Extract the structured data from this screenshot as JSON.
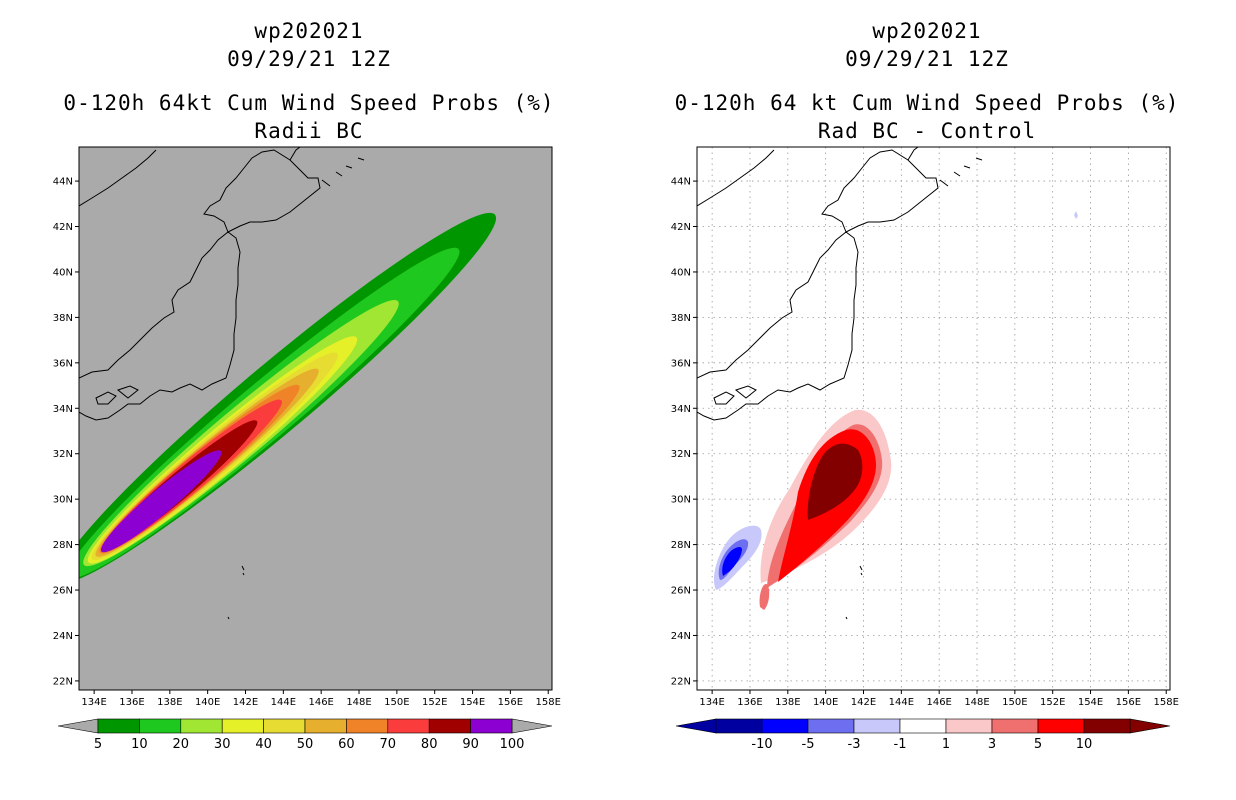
{
  "left": {
    "title": {
      "line1": "wp202021",
      "line2": "09/29/21 12Z",
      "line3": "0-120h 64kt Cum Wind Speed Probs (%)",
      "line4": "Radii BC"
    },
    "background": "#aaaaaa",
    "chart_data": {
      "type": "heatmap",
      "title": "0-120h 64kt Cum Wind Speed Probs (%) - Radii BC",
      "x_ticks": [
        "134E",
        "136E",
        "138E",
        "140E",
        "142E",
        "144E",
        "146E",
        "148E",
        "150E",
        "152E",
        "154E",
        "156E",
        "158E"
      ],
      "y_ticks": [
        "22N",
        "24N",
        "26N",
        "28N",
        "30N",
        "32N",
        "34N",
        "36N",
        "38N",
        "40N",
        "42N",
        "44N"
      ],
      "lon_range": [
        133.2,
        158.2
      ],
      "lat_range": [
        21.6,
        45.5
      ],
      "colorbar": {
        "labels": [
          "5",
          "10",
          "20",
          "30",
          "40",
          "50",
          "60",
          "70",
          "80",
          "90",
          "100"
        ],
        "colors": [
          "#009600",
          "#1ec81e",
          "#a0e632",
          "#e6f028",
          "#e6dc32",
          "#e6af2d",
          "#f08228",
          "#fa3c3c",
          "#a00000",
          "#8c00d2"
        ]
      }
    }
  },
  "right": {
    "title": {
      "line1": "wp202021",
      "line2": "09/29/21 12Z",
      "line3": "0-120h 64 kt Cum Wind Speed Probs (%)",
      "line4": "Rad BC - Control"
    },
    "background": "#ffffff",
    "chart_data": {
      "type": "heatmap",
      "title": "0-120h 64 kt Cum Wind Speed Probs (%) - Rad BC - Control",
      "x_ticks": [
        "134E",
        "136E",
        "138E",
        "140E",
        "142E",
        "144E",
        "146E",
        "148E",
        "150E",
        "152E",
        "154E",
        "156E",
        "158E"
      ],
      "y_ticks": [
        "22N",
        "24N",
        "26N",
        "28N",
        "30N",
        "32N",
        "34N",
        "36N",
        "38N",
        "40N",
        "42N",
        "44N"
      ],
      "lon_range": [
        133.2,
        158.2
      ],
      "lat_range": [
        21.6,
        45.5
      ],
      "colorbar": {
        "labels": [
          "-10",
          "-5",
          "-3",
          "-1",
          "1",
          "3",
          "5",
          "10"
        ],
        "colors": [
          "#0000a0",
          "#0000ff",
          "#6e6ef0",
          "#c8c8fa",
          "#ffffff",
          "#fac8c8",
          "#f07070",
          "#ff0000",
          "#820000"
        ]
      }
    }
  }
}
